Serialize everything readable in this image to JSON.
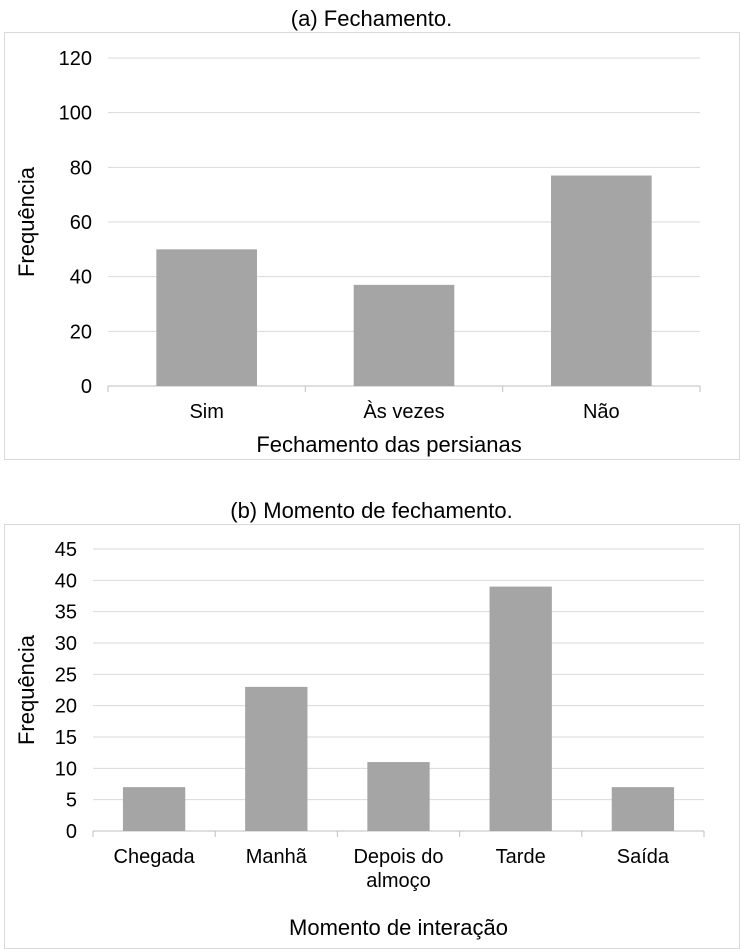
{
  "chart_data": [
    {
      "type": "bar",
      "title": "(a)  Fechamento.",
      "xlabel": "Fechamento das persianas",
      "ylabel": "Frequência",
      "categories": [
        "Sim",
        "Às vezes",
        "Não"
      ],
      "values": [
        50,
        37,
        77
      ],
      "ylim": [
        0,
        120
      ],
      "yticks": [
        0,
        20,
        40,
        60,
        80,
        100,
        120
      ],
      "grid": true,
      "bar_color": "#a5a5a5"
    },
    {
      "type": "bar",
      "title": "(b)  Momento de fechamento.",
      "xlabel": "Momento de interação",
      "ylabel": "Frequência",
      "categories": [
        "Chegada",
        "Manhã",
        "Depois do almoço",
        "Tarde",
        "Saída"
      ],
      "category_lines": [
        [
          "Chegada"
        ],
        [
          "Manhã"
        ],
        [
          "Depois do",
          "almoço"
        ],
        [
          "Tarde"
        ],
        [
          "Saída"
        ]
      ],
      "values": [
        7,
        23,
        11,
        39,
        7
      ],
      "ylim": [
        0,
        45
      ],
      "yticks": [
        0,
        5,
        10,
        15,
        20,
        25,
        30,
        35,
        40,
        45
      ],
      "grid": true,
      "bar_color": "#a5a5a5"
    }
  ]
}
